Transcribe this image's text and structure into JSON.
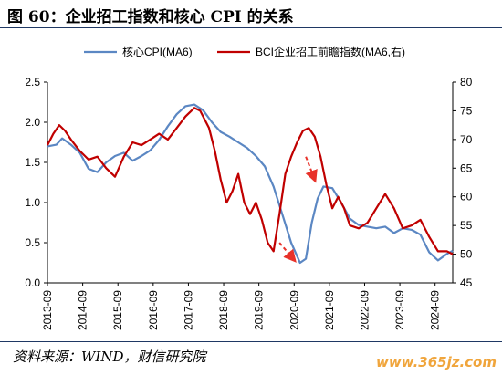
{
  "header": {
    "title": "图 60：企业招工指数和核心 CPI 的关系"
  },
  "footer": {
    "source": "资料来源：WIND，财信研究院",
    "watermark": "www.365jz.com"
  },
  "chart_data": {
    "type": "line",
    "title": "图 60：企业招工指数和核心 CPI 的关系",
    "x_tick_labels": [
      "2013-09",
      "2014-09",
      "2015-09",
      "2016-09",
      "2017-09",
      "2018-09",
      "2019-09",
      "2020-09",
      "2021-09",
      "2022-09",
      "2023-09",
      "2024-09"
    ],
    "x_range": [
      "2013-09",
      "2025-03"
    ],
    "y_left": {
      "range": [
        0.0,
        2.5
      ],
      "ticks": [
        "0.0",
        "0.5",
        "1.0",
        "1.5",
        "2.0",
        "2.5"
      ]
    },
    "y_right": {
      "range": [
        45,
        80
      ],
      "ticks": [
        "45",
        "50",
        "55",
        "60",
        "65",
        "70",
        "75",
        "80"
      ]
    },
    "grid": false,
    "legend_position": "top",
    "colors": {
      "core_cpi": "#5b87c3",
      "bci": "#c00000",
      "arrow": "#e8322a"
    },
    "series": [
      {
        "name": "核心CPI(MA6)",
        "axis": "left",
        "points": [
          [
            "2013-09",
            1.7
          ],
          [
            "2013-12",
            1.72
          ],
          [
            "2014-02",
            1.8
          ],
          [
            "2014-05",
            1.72
          ],
          [
            "2014-08",
            1.62
          ],
          [
            "2014-11",
            1.42
          ],
          [
            "2015-02",
            1.38
          ],
          [
            "2015-05",
            1.5
          ],
          [
            "2015-08",
            1.58
          ],
          [
            "2015-11",
            1.62
          ],
          [
            "2016-02",
            1.52
          ],
          [
            "2016-05",
            1.58
          ],
          [
            "2016-08",
            1.65
          ],
          [
            "2016-11",
            1.78
          ],
          [
            "2017-02",
            1.95
          ],
          [
            "2017-05",
            2.1
          ],
          [
            "2017-08",
            2.2
          ],
          [
            "2017-11",
            2.22
          ],
          [
            "2018-02",
            2.15
          ],
          [
            "2018-05",
            2.0
          ],
          [
            "2018-08",
            1.88
          ],
          [
            "2018-11",
            1.82
          ],
          [
            "2019-02",
            1.75
          ],
          [
            "2019-05",
            1.68
          ],
          [
            "2019-08",
            1.58
          ],
          [
            "2019-11",
            1.45
          ],
          [
            "2020-02",
            1.2
          ],
          [
            "2020-05",
            0.85
          ],
          [
            "2020-08",
            0.5
          ],
          [
            "2020-11",
            0.25
          ],
          [
            "2021-01",
            0.3
          ],
          [
            "2021-03",
            0.75
          ],
          [
            "2021-05",
            1.05
          ],
          [
            "2021-07",
            1.2
          ],
          [
            "2021-10",
            1.18
          ],
          [
            "2022-01",
            1.0
          ],
          [
            "2022-04",
            0.8
          ],
          [
            "2022-07",
            0.72
          ],
          [
            "2022-10",
            0.7
          ],
          [
            "2023-01",
            0.68
          ],
          [
            "2023-04",
            0.7
          ],
          [
            "2023-07",
            0.62
          ],
          [
            "2023-10",
            0.68
          ],
          [
            "2024-01",
            0.66
          ],
          [
            "2024-04",
            0.6
          ],
          [
            "2024-07",
            0.38
          ],
          [
            "2024-10",
            0.28
          ],
          [
            "2025-01",
            0.36
          ],
          [
            "2025-03",
            0.4
          ]
        ]
      },
      {
        "name": "BCI企业招工前瞻指数(MA6,右)",
        "axis": "right",
        "points": [
          [
            "2013-09",
            69
          ],
          [
            "2013-11",
            71
          ],
          [
            "2014-01",
            72.5
          ],
          [
            "2014-03",
            71.5
          ],
          [
            "2014-05",
            70
          ],
          [
            "2014-08",
            68
          ],
          [
            "2014-11",
            66.5
          ],
          [
            "2015-02",
            67
          ],
          [
            "2015-05",
            65
          ],
          [
            "2015-08",
            63.5
          ],
          [
            "2015-11",
            67
          ],
          [
            "2016-02",
            69.5
          ],
          [
            "2016-05",
            69
          ],
          [
            "2016-08",
            70
          ],
          [
            "2016-11",
            71
          ],
          [
            "2017-02",
            70
          ],
          [
            "2017-05",
            72
          ],
          [
            "2017-08",
            74
          ],
          [
            "2017-11",
            75.5
          ],
          [
            "2018-01",
            75
          ],
          [
            "2018-04",
            72
          ],
          [
            "2018-06",
            68
          ],
          [
            "2018-08",
            63
          ],
          [
            "2018-10",
            59
          ],
          [
            "2018-12",
            61
          ],
          [
            "2019-02",
            64
          ],
          [
            "2019-04",
            59
          ],
          [
            "2019-06",
            57
          ],
          [
            "2019-08",
            59
          ],
          [
            "2019-10",
            56
          ],
          [
            "2019-12",
            52
          ],
          [
            "2020-02",
            50.5
          ],
          [
            "2020-04",
            57
          ],
          [
            "2020-06",
            64
          ],
          [
            "2020-08",
            67
          ],
          [
            "2020-10",
            69.5
          ],
          [
            "2020-12",
            71.5
          ],
          [
            "2021-02",
            72
          ],
          [
            "2021-04",
            70.5
          ],
          [
            "2021-06",
            67
          ],
          [
            "2021-08",
            62
          ],
          [
            "2021-10",
            58
          ],
          [
            "2021-12",
            60
          ],
          [
            "2022-02",
            58
          ],
          [
            "2022-04",
            55
          ],
          [
            "2022-07",
            54.5
          ],
          [
            "2022-10",
            55.5
          ],
          [
            "2023-01",
            58
          ],
          [
            "2023-04",
            60.5
          ],
          [
            "2023-07",
            58
          ],
          [
            "2023-10",
            54.5
          ],
          [
            "2024-01",
            55
          ],
          [
            "2024-04",
            56
          ],
          [
            "2024-07",
            53
          ],
          [
            "2024-10",
            50.5
          ],
          [
            "2025-01",
            50.5
          ],
          [
            "2025-03",
            50
          ]
        ]
      }
    ],
    "annotations": [
      {
        "type": "dashed-arrow",
        "axis": "right",
        "from": [
          "2020-04",
          52
        ],
        "to": [
          "2020-09",
          49
        ]
      },
      {
        "type": "dashed-arrow",
        "axis": "right",
        "from": [
          "2021-01",
          67
        ],
        "to": [
          "2021-04",
          63
        ]
      }
    ]
  }
}
